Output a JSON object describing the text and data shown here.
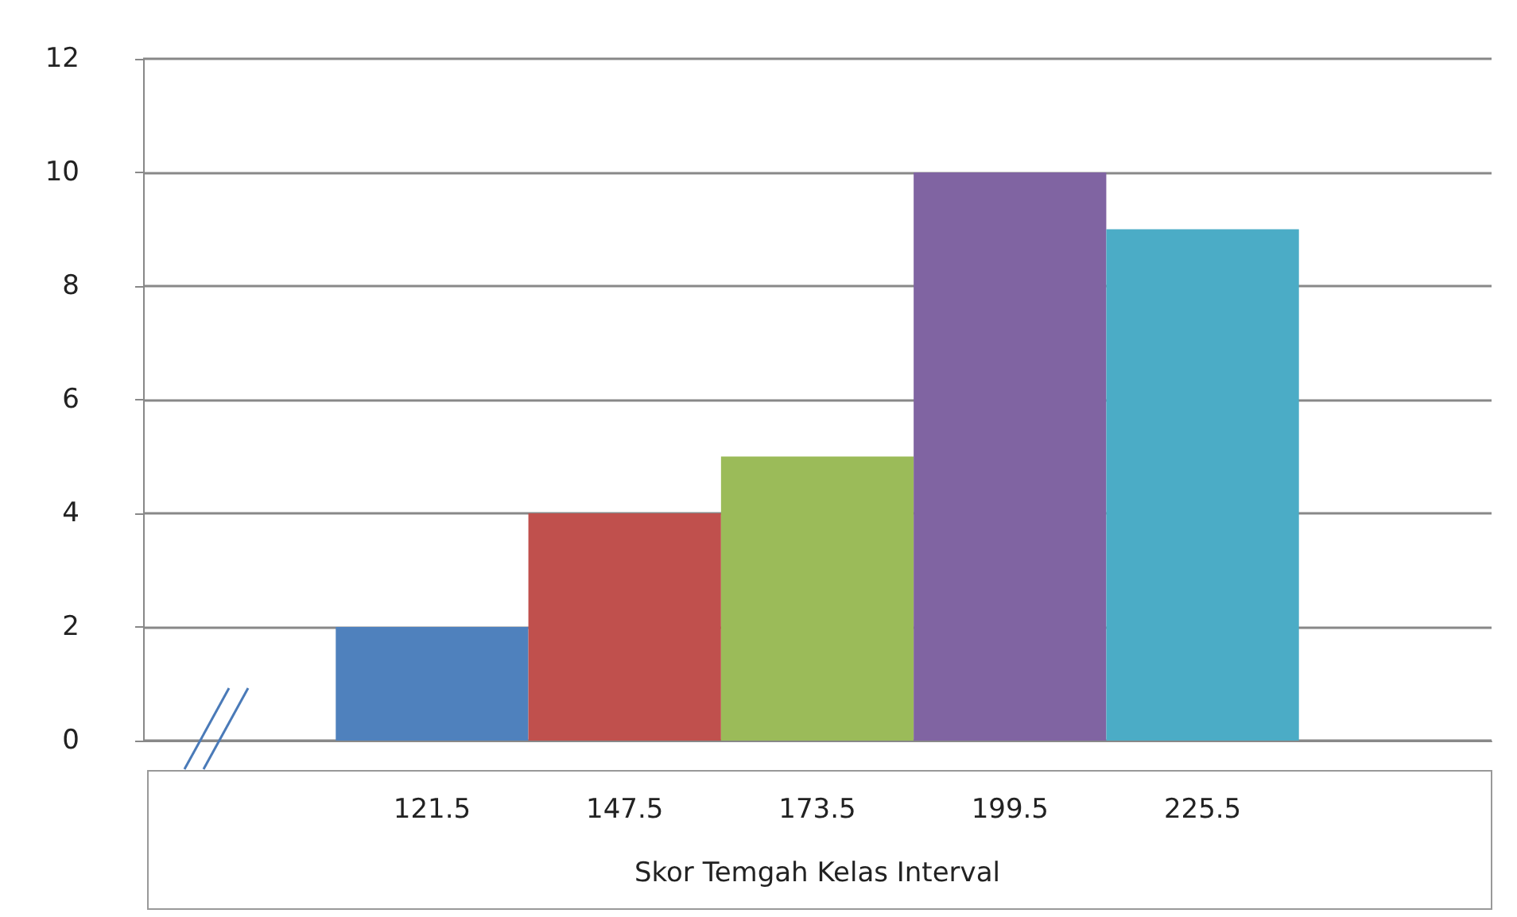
{
  "chart_data": {
    "type": "bar",
    "xlabel": "Skor Temgah Kelas Interval",
    "categories": [
      null,
      "121.5",
      "147.5",
      "173.5",
      "199.5",
      "225.5",
      null
    ],
    "values": [
      null,
      2,
      4,
      5,
      10,
      9,
      null
    ],
    "colors": [
      "#4f81bd",
      "#4f81bd",
      "#c0504d",
      "#9bbb59",
      "#8064a2",
      "#4bacc6",
      "#4bacc6"
    ],
    "ylim": [
      0,
      12
    ],
    "yticks": [
      0,
      2,
      4,
      6,
      8,
      10,
      12
    ],
    "grid": "y"
  }
}
